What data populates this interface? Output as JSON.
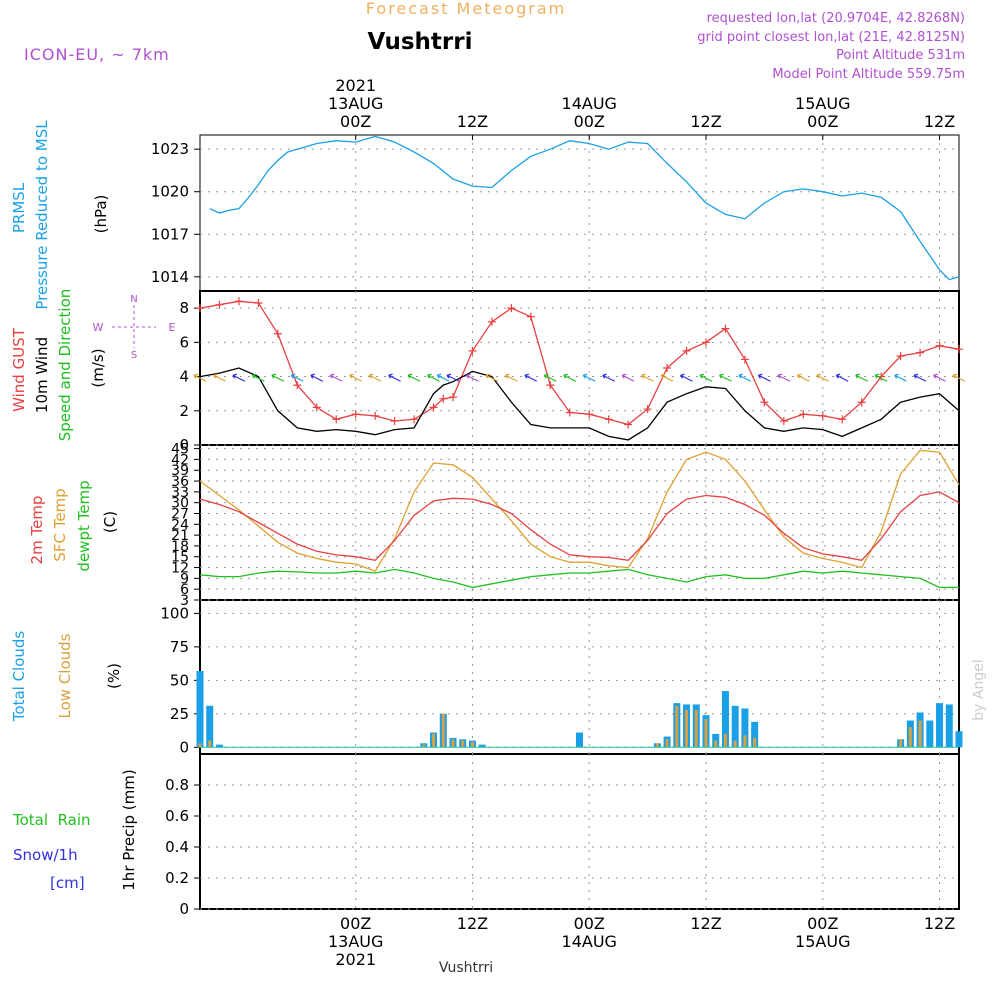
{
  "header": {
    "title": "Vushtrri",
    "subtitle": "Forecast Meteogram",
    "model": "ICON-EU, ~ 7km",
    "requested": "requested lon,lat (20.9704E, 42.8268N)",
    "grid_point": "grid point closest lon,lat (21E, 42.8125N)",
    "point_altitude": "Point Altitude 531m",
    "model_altitude": "Model Point Altitude 559.75m",
    "footer_title": "Vushtrri",
    "credit": "by Angel"
  },
  "colors": {
    "pressure": "#1aa0e6",
    "gust": "#e84040",
    "wind": "#000000",
    "temp2m": "#e84040",
    "sfc": "#e0a030",
    "dew": "#20c020",
    "total_cloud": "#1aa0e6",
    "low_cloud": "#d9a040",
    "rain": "#20c020",
    "snow": "#3030e0",
    "accent": "#b050d0",
    "orange_header": "#f0b060"
  },
  "time_axis": {
    "start_hour": -16,
    "end_hour": 62,
    "top_ticks": [
      {
        "hour": 0,
        "lines": [
          "2021",
          "13AUG",
          "00Z"
        ]
      },
      {
        "hour": 12,
        "lines": [
          "12Z"
        ]
      },
      {
        "hour": 24,
        "lines": [
          "14AUG",
          "00Z"
        ]
      },
      {
        "hour": 36,
        "lines": [
          "12Z"
        ]
      },
      {
        "hour": 48,
        "lines": [
          "15AUG",
          "00Z"
        ]
      },
      {
        "hour": 60,
        "lines": [
          "12Z"
        ]
      }
    ],
    "bottom_ticks": [
      {
        "hour": 0,
        "lines": [
          "00Z",
          "13AUG",
          "2021"
        ]
      },
      {
        "hour": 12,
        "lines": [
          "12Z"
        ]
      },
      {
        "hour": 24,
        "lines": [
          "00Z",
          "14AUG"
        ]
      },
      {
        "hour": 36,
        "lines": [
          "12Z"
        ]
      },
      {
        "hour": 48,
        "lines": [
          "00Z",
          "15AUG"
        ]
      },
      {
        "hour": 60,
        "lines": [
          "12Z"
        ]
      }
    ]
  },
  "panels": {
    "pressure": {
      "labels": [
        "PRMSL",
        "Pressure Reduced to MSL"
      ],
      "unit": "(hPa)",
      "ylim": [
        1013,
        1024
      ],
      "ticks": [
        "1014",
        "1017",
        "1020",
        "1023"
      ],
      "tick_values": [
        1014,
        1017,
        1020,
        1023
      ]
    },
    "wind": {
      "labels": [
        "Wind GUST",
        "10m Wind",
        "Speed and Direction"
      ],
      "unit": "(m/s)",
      "ylim": [
        0,
        9
      ],
      "ticks": [
        "0",
        "2",
        "4",
        "6",
        "8"
      ],
      "tick_values": [
        0,
        2,
        4,
        6,
        8
      ],
      "compass": {
        "n": "N",
        "s": "S",
        "e": "E",
        "w": "W"
      }
    },
    "temperature": {
      "labels": [
        "2m Temp",
        "SFC Temp",
        "dewpt Temp"
      ],
      "unit": "(C)",
      "ylim": [
        3,
        46
      ],
      "ticks": [
        "3",
        "6",
        "9",
        "12",
        "15",
        "18",
        "21",
        "24",
        "27",
        "30",
        "33",
        "36",
        "39",
        "42",
        "45"
      ],
      "tick_values": [
        3,
        6,
        9,
        12,
        15,
        18,
        21,
        24,
        27,
        30,
        33,
        36,
        39,
        42,
        45
      ]
    },
    "clouds": {
      "labels": [
        "Total Clouds",
        "Low Clouds"
      ],
      "unit": "(%)",
      "ylim": [
        -5,
        110
      ],
      "ticks": [
        "0",
        "25",
        "50",
        "75",
        "100"
      ],
      "tick_values": [
        0,
        25,
        50,
        75,
        100
      ]
    },
    "precip": {
      "labels": [
        "Total  Rain",
        "Snow/1h",
        "[cm]"
      ],
      "unit": "1hr Precip (mm)",
      "ylim": [
        0,
        1
      ],
      "ticks": [
        "0",
        "0.2",
        "0.4",
        "0.6",
        "0.8"
      ],
      "tick_values": [
        0,
        0.2,
        0.4,
        0.6,
        0.8
      ]
    }
  },
  "chart_data": [
    {
      "type": "line",
      "title": "PRMSL Pressure Reduced to MSL",
      "ylabel": "hPa",
      "x_hours": [
        -15,
        -14,
        -13,
        -12,
        -11,
        -10,
        -9,
        -8,
        -7,
        -6,
        -4,
        -2,
        0,
        2,
        4,
        6,
        8,
        10,
        12,
        14,
        16,
        18,
        20,
        22,
        24,
        26,
        28,
        30,
        32,
        34,
        36,
        38,
        40,
        42,
        44,
        46,
        48,
        50,
        52,
        54,
        56,
        58,
        60,
        61,
        62
      ],
      "series": [
        {
          "name": "PRMSL",
          "values": [
            1018.8,
            1018.5,
            1018.7,
            1018.8,
            1019.6,
            1020.5,
            1021.5,
            1022.2,
            1022.8,
            1023.0,
            1023.4,
            1023.6,
            1023.5,
            1023.9,
            1023.5,
            1022.8,
            1022.0,
            1020.9,
            1020.4,
            1020.3,
            1021.5,
            1022.5,
            1023.0,
            1023.6,
            1023.4,
            1023.0,
            1023.5,
            1023.4,
            1022.0,
            1020.7,
            1019.2,
            1018.4,
            1018.1,
            1019.2,
            1020.0,
            1020.2,
            1020.0,
            1019.7,
            1019.9,
            1019.6,
            1018.6,
            1016.5,
            1014.5,
            1013.8,
            1014.0
          ]
        }
      ]
    },
    {
      "type": "line",
      "title": "Wind GUST / 10m Wind",
      "ylabel": "m/s",
      "x_hours": [
        -16,
        -14,
        -12,
        -10,
        -8,
        -6,
        -4,
        -2,
        0,
        2,
        4,
        6,
        8,
        9,
        10,
        12,
        14,
        16,
        18,
        20,
        22,
        24,
        26,
        28,
        30,
        32,
        34,
        36,
        38,
        40,
        42,
        44,
        46,
        48,
        50,
        52,
        54,
        56,
        58,
        60,
        62
      ],
      "series": [
        {
          "name": "Wind GUST",
          "values": [
            8.0,
            8.2,
            8.4,
            8.3,
            6.5,
            3.5,
            2.2,
            1.5,
            1.8,
            1.7,
            1.4,
            1.5,
            2.2,
            2.7,
            2.8,
            5.5,
            7.2,
            8.0,
            7.5,
            3.5,
            1.9,
            1.8,
            1.5,
            1.2,
            2.1,
            4.5,
            5.5,
            6.0,
            6.8,
            5.0,
            2.5,
            1.4,
            1.8,
            1.7,
            1.5,
            2.5,
            4.0,
            5.2,
            5.4,
            5.8,
            5.6
          ]
        },
        {
          "name": "10m Wind",
          "values": [
            4.0,
            4.2,
            4.5,
            4.0,
            2.0,
            1.0,
            0.8,
            0.9,
            0.8,
            0.6,
            0.9,
            1.0,
            3.0,
            3.5,
            3.7,
            4.3,
            4.0,
            2.5,
            1.2,
            1.0,
            1.0,
            1.0,
            0.5,
            0.3,
            1.0,
            2.5,
            3.0,
            3.4,
            3.3,
            2.0,
            1.0,
            0.8,
            1.0,
            0.9,
            0.5,
            1.0,
            1.5,
            2.5,
            2.8,
            3.0,
            2.0
          ]
        }
      ]
    },
    {
      "type": "line",
      "title": "2m Temp / SFC Temp / dewpt Temp",
      "ylabel": "C",
      "x_hours": [
        -16,
        -14,
        -12,
        -10,
        -8,
        -6,
        -4,
        -2,
        0,
        2,
        4,
        6,
        8,
        10,
        12,
        14,
        16,
        18,
        20,
        22,
        24,
        26,
        28,
        30,
        32,
        34,
        36,
        38,
        40,
        42,
        44,
        46,
        48,
        50,
        52,
        54,
        56,
        58,
        60,
        62
      ],
      "series": [
        {
          "name": "2m Temp",
          "values": [
            31.0,
            29.5,
            27.5,
            24.5,
            21.5,
            18.5,
            16.5,
            15.5,
            15.0,
            14.0,
            19.5,
            26.5,
            30.5,
            31.2,
            31.0,
            29.5,
            27.0,
            22.5,
            18.5,
            15.5,
            15.0,
            14.8,
            14.0,
            19.5,
            27.0,
            31.0,
            32.0,
            31.5,
            29.5,
            26.5,
            21.5,
            17.5,
            15.8,
            15.0,
            14.0,
            20.0,
            27.5,
            32.0,
            33.0,
            30.0
          ]
        },
        {
          "name": "SFC Temp",
          "values": [
            36.0,
            32.0,
            28.0,
            23.5,
            19.0,
            16.0,
            14.5,
            13.5,
            13.0,
            11.0,
            20.0,
            33.0,
            41.0,
            40.5,
            37.0,
            31.0,
            25.0,
            18.5,
            15.0,
            13.5,
            13.5,
            12.5,
            12.0,
            20.0,
            33.0,
            42.0,
            44.0,
            42.0,
            36.0,
            28.0,
            20.5,
            16.0,
            14.5,
            13.5,
            12.0,
            22.0,
            38.0,
            44.5,
            44.0,
            35.0
          ]
        },
        {
          "name": "dewpt Temp",
          "values": [
            10.0,
            9.5,
            9.5,
            10.5,
            11.0,
            10.8,
            10.5,
            10.5,
            11.0,
            10.5,
            11.5,
            10.5,
            9.0,
            8.0,
            6.5,
            7.5,
            8.5,
            9.5,
            10.0,
            10.5,
            10.5,
            11.0,
            11.5,
            10.0,
            9.0,
            8.0,
            9.5,
            10.0,
            9.0,
            9.0,
            10.0,
            11.0,
            10.5,
            11.0,
            10.5,
            10.0,
            9.5,
            9.0,
            6.5,
            6.5
          ]
        }
      ]
    },
    {
      "type": "bar",
      "title": "Total Clouds / Low Clouds",
      "ylabel": "%",
      "x_hours": [
        -16,
        -15,
        -14,
        -8,
        -4,
        -2,
        2,
        5,
        7,
        8,
        9,
        10,
        11,
        12,
        13,
        14,
        23,
        28,
        31,
        32,
        33,
        34,
        35,
        36,
        37,
        38,
        39,
        40,
        41,
        42,
        56,
        57,
        58,
        59,
        60,
        61,
        62
      ],
      "series": [
        {
          "name": "Total Clouds",
          "values": [
            57,
            31,
            2,
            0,
            0,
            0,
            0,
            0,
            3,
            11,
            25,
            7,
            6,
            5,
            2,
            0,
            11,
            0,
            3,
            8,
            33,
            32,
            32,
            24,
            10,
            42,
            31,
            29,
            19,
            0,
            6,
            20,
            26,
            20,
            33,
            32,
            12
          ]
        },
        {
          "name": "Low Clouds",
          "values": [
            3,
            5,
            0,
            0,
            0,
            0,
            0,
            0,
            2,
            10,
            25,
            6,
            5,
            4,
            0,
            0,
            0,
            0,
            3,
            6,
            31,
            28,
            28,
            21,
            5,
            10,
            5,
            9,
            7,
            0,
            6,
            15,
            20,
            0,
            0,
            0,
            0
          ]
        }
      ]
    },
    {
      "type": "bar",
      "title": "1hr Precip",
      "ylabel": "1hr Precip (mm)",
      "ylim": [
        0,
        1
      ],
      "series": [
        {
          "name": "Total Rain",
          "values": []
        }
      ]
    }
  ]
}
